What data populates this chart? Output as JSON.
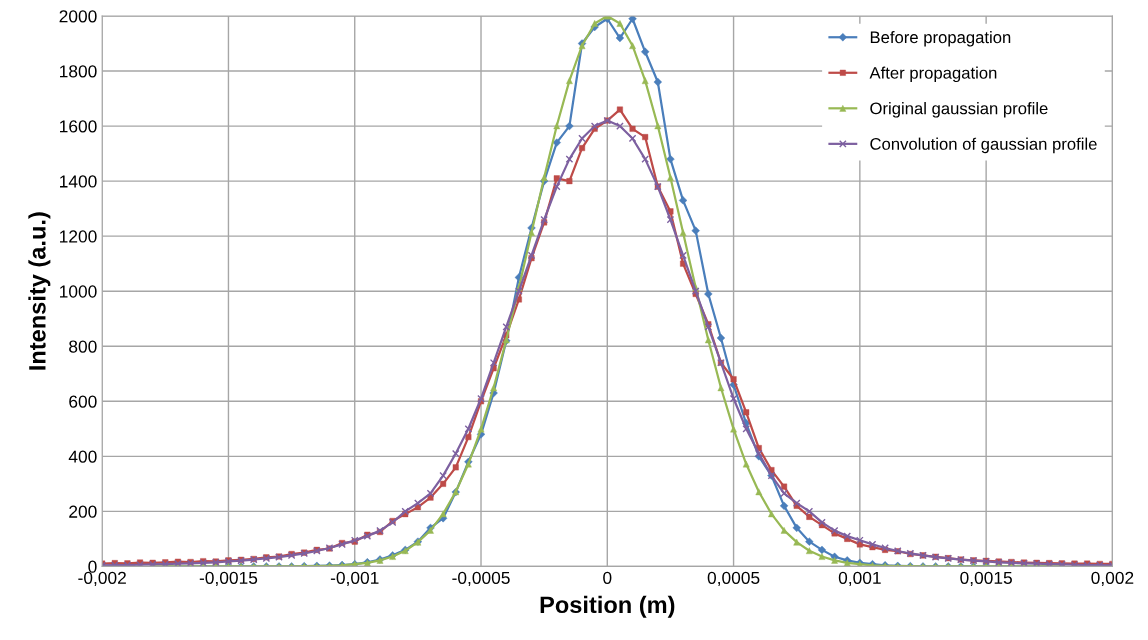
{
  "chart_data": {
    "type": "line",
    "xlabel": "Position (m)",
    "ylabel": "Intensity (a.u.)",
    "x": [
      -0.002,
      -0.00195,
      -0.0019,
      -0.00185,
      -0.0018,
      -0.00175,
      -0.0017,
      -0.00165,
      -0.0016,
      -0.00155,
      -0.0015,
      -0.00145,
      -0.0014,
      -0.00135,
      -0.0013,
      -0.00125,
      -0.0012,
      -0.00115,
      -0.0011,
      -0.00105,
      -0.001,
      -0.00095,
      -0.0009,
      -0.00085,
      -0.0008,
      -0.00075,
      -0.0007,
      -0.00065,
      -0.0006,
      -0.00055,
      -0.0005,
      -0.00045,
      -0.0004,
      -0.00035,
      -0.0003,
      -0.00025,
      -0.0002,
      -0.00015,
      -0.0001,
      -5e-05,
      0,
      5e-05,
      0.0001,
      0.00015,
      0.0002,
      0.00025,
      0.0003,
      0.00035,
      0.0004,
      0.00045,
      0.0005,
      0.00055,
      0.0006,
      0.00065,
      0.0007,
      0.00075,
      0.0008,
      0.00085,
      0.0009,
      0.00095,
      0.001,
      0.00105,
      0.0011,
      0.00115,
      0.0012,
      0.00125,
      0.0013,
      0.00135,
      0.0014,
      0.00145,
      0.0015,
      0.00155,
      0.0016,
      0.00165,
      0.0017,
      0.00175,
      0.0018,
      0.00185,
      0.0019,
      0.00195,
      0.002
    ],
    "series": [
      {
        "name": "Before propagation",
        "color": "#4a7ebb",
        "marker": "diamond",
        "values": [
          null,
          null,
          null,
          null,
          null,
          0,
          0,
          0,
          0,
          0,
          0,
          0,
          0,
          0,
          0,
          0,
          1,
          2,
          3,
          5,
          8,
          15,
          25,
          40,
          60,
          90,
          140,
          175,
          270,
          380,
          480,
          630,
          820,
          1050,
          1230,
          1400,
          1540,
          1600,
          1900,
          1960,
          1990,
          1920,
          1990,
          1870,
          1760,
          1480,
          1330,
          1220,
          990,
          830,
          660,
          520,
          400,
          330,
          220,
          140,
          90,
          60,
          35,
          22,
          13,
          8,
          4,
          2,
          1,
          0,
          0,
          0,
          0,
          0,
          0,
          0,
          0,
          0,
          0,
          0,
          null,
          null,
          null,
          null,
          null
        ]
      },
      {
        "name": "After propagation",
        "color": "#be4b48",
        "marker": "square",
        "values": [
          10,
          12,
          11,
          14,
          13,
          15,
          17,
          16,
          19,
          18,
          22,
          24,
          27,
          33,
          36,
          45,
          50,
          60,
          65,
          85,
          90,
          115,
          125,
          165,
          190,
          215,
          250,
          300,
          360,
          470,
          600,
          720,
          840,
          970,
          1120,
          1250,
          1410,
          1400,
          1520,
          1590,
          1620,
          1660,
          1590,
          1560,
          1380,
          1290,
          1100,
          990,
          880,
          740,
          680,
          560,
          430,
          350,
          290,
          220,
          180,
          150,
          120,
          100,
          80,
          70,
          60,
          55,
          45,
          40,
          35,
          30,
          25,
          22,
          20,
          18,
          16,
          14,
          13,
          12,
          11,
          10,
          10,
          9,
          9
        ]
      },
      {
        "name": "Original gaussian profile",
        "color": "#98b954",
        "marker": "triangle",
        "values": [
          null,
          null,
          null,
          null,
          0,
          0,
          0,
          0,
          0,
          0,
          0,
          0,
          0,
          0,
          0,
          0,
          1,
          1,
          2,
          4,
          8,
          13,
          22,
          36,
          57,
          88,
          131,
          191,
          271,
          372,
          499,
          649,
          823,
          1013,
          1213,
          1413,
          1601,
          1765,
          1892,
          1973,
          2000,
          1973,
          1892,
          1765,
          1601,
          1413,
          1213,
          1013,
          823,
          649,
          499,
          372,
          271,
          191,
          131,
          88,
          57,
          36,
          22,
          13,
          8,
          4,
          2,
          1,
          1,
          0,
          0,
          0,
          0,
          0,
          0,
          0,
          0,
          0,
          0,
          0,
          0,
          null,
          null,
          null,
          null
        ]
      },
      {
        "name": "Convolution of gaussian profile",
        "color": "#7d60a0",
        "marker": "cross",
        "values": [
          4,
          5,
          5,
          6,
          7,
          8,
          10,
          11,
          13,
          15,
          18,
          21,
          25,
          29,
          34,
          40,
          47,
          56,
          67,
          80,
          95,
          110,
          130,
          160,
          200,
          230,
          265,
          330,
          410,
          500,
          610,
          740,
          870,
          1000,
          1130,
          1260,
          1380,
          1480,
          1555,
          1600,
          1620,
          1600,
          1555,
          1480,
          1380,
          1260,
          1130,
          1000,
          870,
          740,
          610,
          500,
          410,
          330,
          265,
          230,
          200,
          160,
          130,
          110,
          95,
          80,
          67,
          56,
          47,
          40,
          34,
          29,
          25,
          21,
          18,
          15,
          13,
          11,
          10,
          8,
          7,
          6,
          5,
          5,
          4
        ]
      }
    ],
    "xlim": [
      -0.002,
      0.002
    ],
    "xticks": [
      {
        "value": -0.002,
        "label": "-0,002"
      },
      {
        "value": -0.0015,
        "label": "-0,0015"
      },
      {
        "value": -0.001,
        "label": "-0,001"
      },
      {
        "value": -0.0005,
        "label": "-0,0005"
      },
      0,
      {
        "value": 0.0005,
        "label": "0,0005"
      },
      {
        "value": 0.001,
        "label": "0,001"
      },
      {
        "value": 0.0015,
        "label": "0,0015"
      },
      {
        "value": 0.002,
        "label": "0,002"
      }
    ],
    "ylim": [
      0,
      2000
    ],
    "yticks": [
      0,
      200,
      400,
      600,
      800,
      1000,
      1200,
      1400,
      1600,
      1800,
      2000
    ],
    "grid": true,
    "legend": "top right",
    "line_style": "solid"
  }
}
